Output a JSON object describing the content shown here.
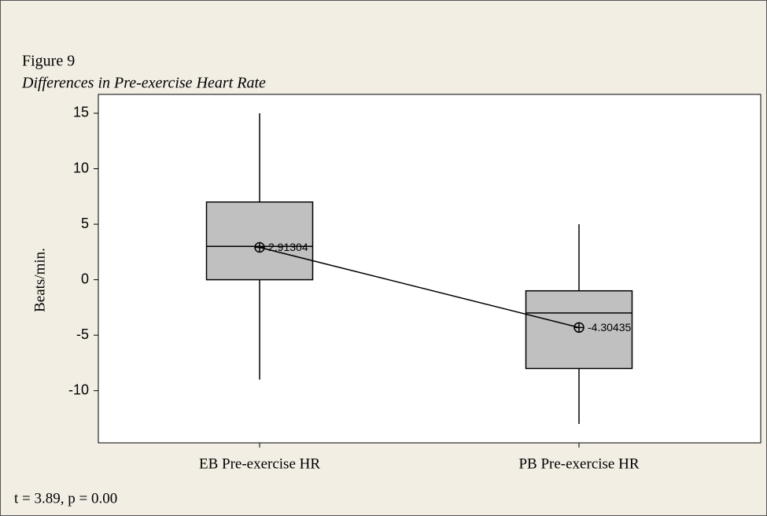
{
  "chart_data": {
    "type": "box",
    "title": "Figure 9",
    "subtitle": "Differences in Pre-exercise Heart Rate",
    "ylabel": "Beats/min.",
    "annotation": "t = 3.89, p = 0.00",
    "categories": [
      "EB Pre-exercise HR",
      "PB Pre-exercise HR"
    ],
    "whisker_low": [
      -9,
      -13
    ],
    "q1": [
      0,
      -8
    ],
    "median": [
      3,
      -3
    ],
    "q3": [
      7,
      -1
    ],
    "whisker_high": [
      15,
      5
    ],
    "mean": [
      2.91304,
      -4.30435
    ],
    "color": "#c0c0c0",
    "ylim": [
      -14.7,
      16.7
    ],
    "yticks": [
      15,
      10,
      5,
      0,
      -5,
      -10
    ]
  }
}
